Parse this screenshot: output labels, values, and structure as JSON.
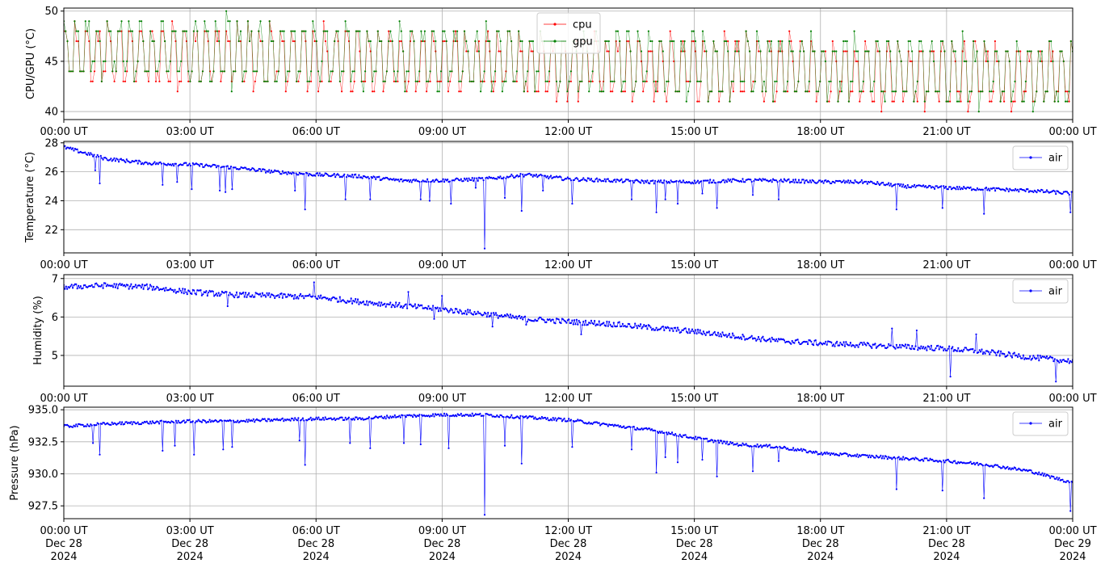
{
  "chart_data": [
    {
      "type": "line",
      "ylabel": "CPU/GPU (°C)",
      "ylim": [
        39.2,
        50.3
      ],
      "yticks": [
        40,
        45,
        50
      ],
      "ytick_labels": [
        "40",
        "45",
        "50"
      ],
      "xticks": [
        "00:00 UT",
        "03:00 UT",
        "06:00 UT",
        "09:00 UT",
        "12:00 UT",
        "15:00 UT",
        "18:00 UT",
        "21:00 UT",
        "00:00 UT"
      ],
      "grid": true,
      "legend": "top-center",
      "series": [
        {
          "name": "cpu",
          "color": "#ff0000",
          "pattern": "oscillating 41-49, slowly declining",
          "range_start": [
            42.5,
            49.3
          ],
          "range_end": [
            40.0,
            47.0
          ]
        },
        {
          "name": "gpu",
          "color": "#008000",
          "pattern": "oscillating 41-49, slowly declining",
          "range_start": [
            43.0,
            49.8
          ],
          "range_end": [
            40.2,
            47.2
          ]
        }
      ]
    },
    {
      "type": "line",
      "ylabel": "Temperature (°C)",
      "ylim": [
        20.4,
        28.1
      ],
      "yticks": [
        22,
        24,
        26,
        28
      ],
      "ytick_labels": [
        "22",
        "24",
        "26",
        "28"
      ],
      "xticks": [
        "00:00 UT",
        "03:00 UT",
        "06:00 UT",
        "09:00 UT",
        "12:00 UT",
        "15:00 UT",
        "18:00 UT",
        "21:00 UT",
        "00:00 UT"
      ],
      "grid": true,
      "legend": "top-right",
      "series": [
        {
          "name": "air",
          "color": "#0000ff",
          "x_hours": [
            0,
            1,
            2,
            3,
            4,
            5,
            6,
            7,
            8,
            9,
            10,
            11,
            12,
            13,
            14,
            15,
            16,
            17,
            18,
            19,
            20,
            21,
            22,
            23,
            24
          ],
          "values": [
            27.7,
            26.9,
            26.6,
            26.5,
            26.3,
            26.0,
            25.8,
            25.7,
            25.4,
            25.4,
            25.5,
            25.8,
            25.5,
            25.4,
            25.3,
            25.3,
            25.4,
            25.4,
            25.3,
            25.3,
            25.0,
            24.9,
            24.8,
            24.7,
            24.5
          ],
          "dips": [
            [
              0.75,
              26.1
            ],
            [
              0.85,
              25.2
            ],
            [
              2.35,
              25.1
            ],
            [
              2.7,
              25.3
            ],
            [
              3.05,
              24.8
            ],
            [
              3.7,
              24.7
            ],
            [
              3.85,
              24.6
            ],
            [
              4.0,
              24.8
            ],
            [
              5.5,
              24.7
            ],
            [
              5.75,
              23.4
            ],
            [
              6.7,
              24.1
            ],
            [
              7.3,
              24.1
            ],
            [
              8.5,
              24.1
            ],
            [
              8.7,
              24.0
            ],
            [
              9.2,
              23.8
            ],
            [
              9.8,
              24.9
            ],
            [
              10.0,
              20.7
            ],
            [
              10.5,
              24.2
            ],
            [
              10.9,
              23.3
            ],
            [
              11.4,
              24.7
            ],
            [
              12.1,
              23.8
            ],
            [
              13.5,
              24.1
            ],
            [
              14.1,
              23.2
            ],
            [
              14.3,
              24.1
            ],
            [
              14.6,
              23.8
            ],
            [
              15.2,
              24.5
            ],
            [
              15.55,
              23.5
            ],
            [
              16.4,
              24.4
            ],
            [
              17.0,
              24.1
            ],
            [
              19.8,
              23.4
            ],
            [
              20.9,
              23.5
            ],
            [
              21.9,
              23.1
            ],
            [
              23.95,
              23.2
            ]
          ]
        }
      ]
    },
    {
      "type": "line",
      "ylabel": "Humidity (%)",
      "ylim": [
        4.2,
        7.1
      ],
      "yticks": [
        5,
        6,
        7
      ],
      "ytick_labels": [
        "5",
        "6",
        "7"
      ],
      "xticks": [
        "00:00 UT",
        "03:00 UT",
        "06:00 UT",
        "09:00 UT",
        "12:00 UT",
        "15:00 UT",
        "18:00 UT",
        "21:00 UT",
        "00:00 UT"
      ],
      "grid": true,
      "legend": "top-right",
      "series": [
        {
          "name": "air",
          "color": "#0000ff",
          "x_hours": [
            0,
            1,
            2,
            3,
            4,
            5,
            6,
            7,
            8,
            9,
            10,
            11,
            12,
            13,
            14,
            15,
            16,
            17,
            18,
            19,
            20,
            21,
            22,
            23,
            24
          ],
          "values": [
            6.78,
            6.82,
            6.78,
            6.65,
            6.58,
            6.55,
            6.52,
            6.4,
            6.3,
            6.2,
            6.08,
            5.95,
            5.88,
            5.82,
            5.72,
            5.62,
            5.5,
            5.38,
            5.32,
            5.27,
            5.22,
            5.18,
            5.08,
            4.95,
            4.85
          ],
          "dips": [
            [
              3.9,
              6.28
            ],
            [
              8.8,
              5.95
            ],
            [
              10.2,
              5.75
            ],
            [
              11.0,
              5.8
            ],
            [
              12.3,
              5.55
            ],
            [
              21.1,
              4.45
            ],
            [
              23.6,
              4.32
            ],
            [
              9.0,
              6.55
            ],
            [
              8.2,
              6.65
            ],
            [
              5.95,
              6.9
            ],
            [
              19.7,
              5.7
            ],
            [
              20.3,
              5.65
            ],
            [
              21.7,
              5.55
            ]
          ]
        }
      ]
    },
    {
      "type": "line",
      "ylabel": "Pressure (hPa)",
      "ylim": [
        926.5,
        935.2
      ],
      "yticks": [
        927.5,
        930.0,
        932.5,
        935.0
      ],
      "ytick_labels": [
        "927.5",
        "930.0",
        "932.5",
        "935.0"
      ],
      "xticks": [
        "00:00 UT",
        "03:00 UT",
        "06:00 UT",
        "09:00 UT",
        "12:00 UT",
        "15:00 UT",
        "18:00 UT",
        "21:00 UT",
        "00:00 UT"
      ],
      "xtick_dates": [
        "Dec 28",
        "Dec 28",
        "Dec 28",
        "Dec 28",
        "Dec 28",
        "Dec 28",
        "Dec 28",
        "Dec 28",
        "Dec 29"
      ],
      "xtick_years": [
        "2024",
        "2024",
        "2024",
        "2024",
        "2024",
        "2024",
        "2024",
        "2024",
        "2024"
      ],
      "grid": true,
      "legend": "top-right",
      "series": [
        {
          "name": "air",
          "color": "#0000ff",
          "x_hours": [
            0,
            1,
            2,
            3,
            4,
            5,
            6,
            7,
            8,
            9,
            10,
            11,
            12,
            13,
            14,
            15,
            16,
            17,
            18,
            19,
            20,
            21,
            22,
            23,
            24
          ],
          "values": [
            933.7,
            933.9,
            934.0,
            934.1,
            934.1,
            934.2,
            934.3,
            934.3,
            934.5,
            934.6,
            934.6,
            934.4,
            934.2,
            933.8,
            933.4,
            932.8,
            932.3,
            932.1,
            931.6,
            931.4,
            931.2,
            931.0,
            930.7,
            930.2,
            929.3
          ],
          "dips": [
            [
              0.7,
              932.4
            ],
            [
              0.85,
              931.5
            ],
            [
              2.35,
              931.8
            ],
            [
              2.65,
              932.2
            ],
            [
              3.1,
              931.5
            ],
            [
              3.8,
              931.9
            ],
            [
              4.0,
              932.1
            ],
            [
              5.6,
              932.6
            ],
            [
              5.75,
              930.7
            ],
            [
              6.8,
              932.4
            ],
            [
              7.3,
              932.0
            ],
            [
              8.1,
              932.4
            ],
            [
              8.5,
              932.3
            ],
            [
              9.15,
              932.0
            ],
            [
              10.0,
              926.8
            ],
            [
              10.5,
              932.2
            ],
            [
              10.9,
              930.8
            ],
            [
              12.1,
              932.1
            ],
            [
              13.5,
              931.9
            ],
            [
              14.1,
              930.1
            ],
            [
              14.3,
              931.3
            ],
            [
              14.6,
              930.9
            ],
            [
              15.2,
              931.1
            ],
            [
              15.55,
              929.8
            ],
            [
              16.4,
              930.2
            ],
            [
              17.0,
              931.0
            ],
            [
              19.8,
              928.8
            ],
            [
              20.9,
              928.7
            ],
            [
              21.9,
              928.1
            ],
            [
              23.95,
              927.1
            ]
          ]
        }
      ]
    }
  ]
}
